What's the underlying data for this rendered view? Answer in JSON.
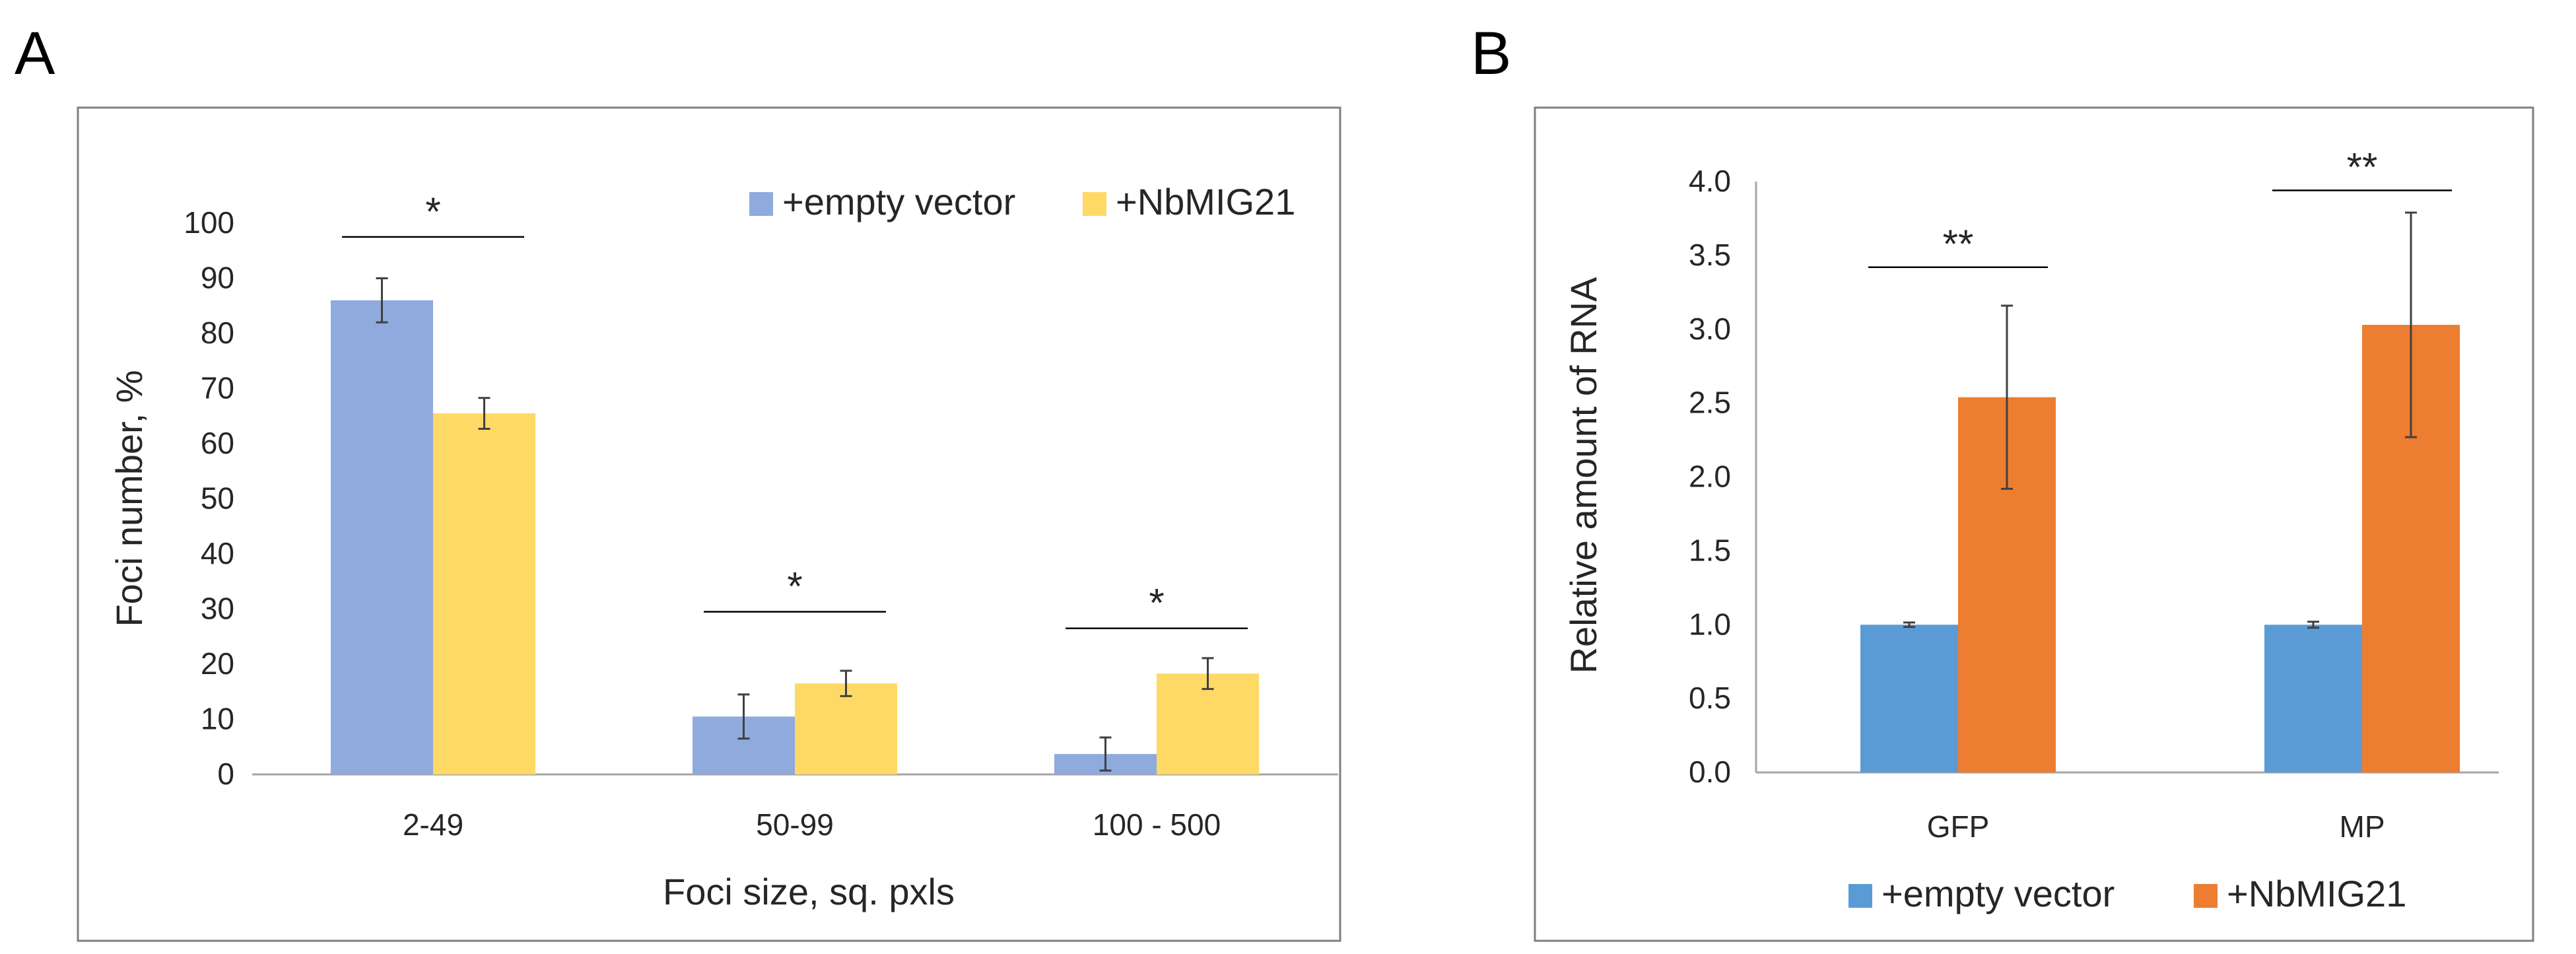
{
  "panels": [
    {
      "letter": "A",
      "chart_data": {
        "type": "bar",
        "categories": [
          "2-49",
          "50-99",
          "100 - 500"
        ],
        "series": [
          {
            "name": "+empty vector",
            "values": [
              86,
              10.5,
              3.7
            ],
            "errors": [
              4,
              4,
              3
            ],
            "color": "#8FAADC"
          },
          {
            "name": "+NbMIG21",
            "values": [
              65.5,
              16.5,
              18.3
            ],
            "errors": [
              2.8,
              2.3,
              2.8
            ],
            "color": "#FFD966"
          }
        ],
        "xlabel": "Foci size, sq. pxls",
        "ylabel": "Foci number, %",
        "ylim": [
          0,
          100
        ],
        "yticks": [
          0,
          10,
          20,
          30,
          40,
          50,
          60,
          70,
          80,
          90,
          100
        ],
        "ytick_decimals": 0,
        "significance": [
          {
            "category": 0,
            "label": "*",
            "y": 97.5
          },
          {
            "category": 1,
            "label": "*",
            "y": 29.5
          },
          {
            "category": 2,
            "label": "*",
            "y": 26.5
          }
        ],
        "grid": false,
        "legend": "top-right"
      }
    },
    {
      "letter": "B",
      "chart_data": {
        "type": "bar",
        "categories": [
          "GFP",
          "MP"
        ],
        "series": [
          {
            "name": "+empty vector",
            "values": [
              1.0,
              1.0
            ],
            "errors": [
              0.015,
              0.02
            ],
            "color": "#5B9BD5"
          },
          {
            "name": "+NbMIG21",
            "values": [
              2.54,
              3.03
            ],
            "errors": [
              0.62,
              0.76
            ],
            "color": "#ED7D31"
          }
        ],
        "xlabel": "",
        "ylabel": "Relative amount of RNA",
        "ylim": [
          0,
          4.0
        ],
        "yticks": [
          0,
          0.5,
          1.0,
          1.5,
          2.0,
          2.5,
          3.0,
          3.5,
          4.0
        ],
        "ytick_decimals": 1,
        "significance": [
          {
            "category": 0,
            "label": "**",
            "y": 3.42
          },
          {
            "category": 1,
            "label": "**",
            "y": 3.94
          }
        ],
        "grid": false,
        "legend": "bottom"
      }
    }
  ]
}
